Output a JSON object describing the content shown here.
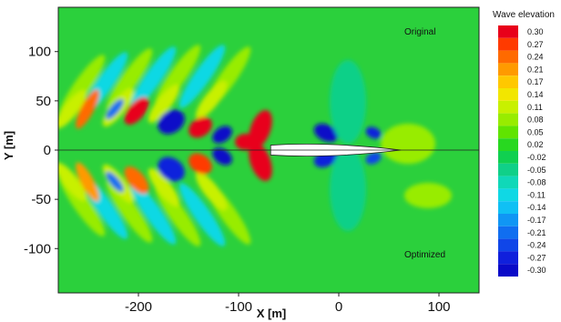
{
  "chart_data": {
    "type": "heatmap",
    "title": "",
    "xlabel": "X [m]",
    "ylabel": "Y [m]",
    "xlim": [
      -280,
      140
    ],
    "ylim": [
      -145,
      145
    ],
    "x_ticks": [
      "-200",
      "-100",
      "0",
      "100"
    ],
    "x_tick_values": [
      -200,
      -100,
      0,
      100
    ],
    "y_ticks": [
      "100",
      "50",
      "0",
      "-50",
      "-100"
    ],
    "y_tick_values": [
      100,
      50,
      0,
      -50,
      -100
    ],
    "grid": false,
    "legend": {
      "title": "Wave elevation",
      "placement": "right",
      "levels": [
        "0.30",
        "0.27",
        "0.24",
        "0.21",
        "0.17",
        "0.14",
        "0.11",
        "0.08",
        "0.05",
        "0.02",
        "-0.02",
        "-0.05",
        "-0.08",
        "-0.11",
        "-0.14",
        "-0.17",
        "-0.21",
        "-0.24",
        "-0.27",
        "-0.30"
      ],
      "colors": [
        "#e8001a",
        "#ff3a00",
        "#ff6a00",
        "#ff9a00",
        "#ffc800",
        "#f2e600",
        "#c8f000",
        "#98ec00",
        "#60e400",
        "#28d820",
        "#10d050",
        "#10d088",
        "#10d8b8",
        "#10d8e4",
        "#10c0f4",
        "#1096f4",
        "#106ef0",
        "#1046e8",
        "#1020dc",
        "#0a0ac8"
      ]
    },
    "annotations": [
      {
        "text": "Original",
        "x": 60,
        "y": 115
      },
      {
        "text": "Optimized",
        "x": 60,
        "y": -110
      }
    ],
    "hull": {
      "bow_x": 62,
      "stern_x": -68,
      "half_beam": 5
    }
  }
}
